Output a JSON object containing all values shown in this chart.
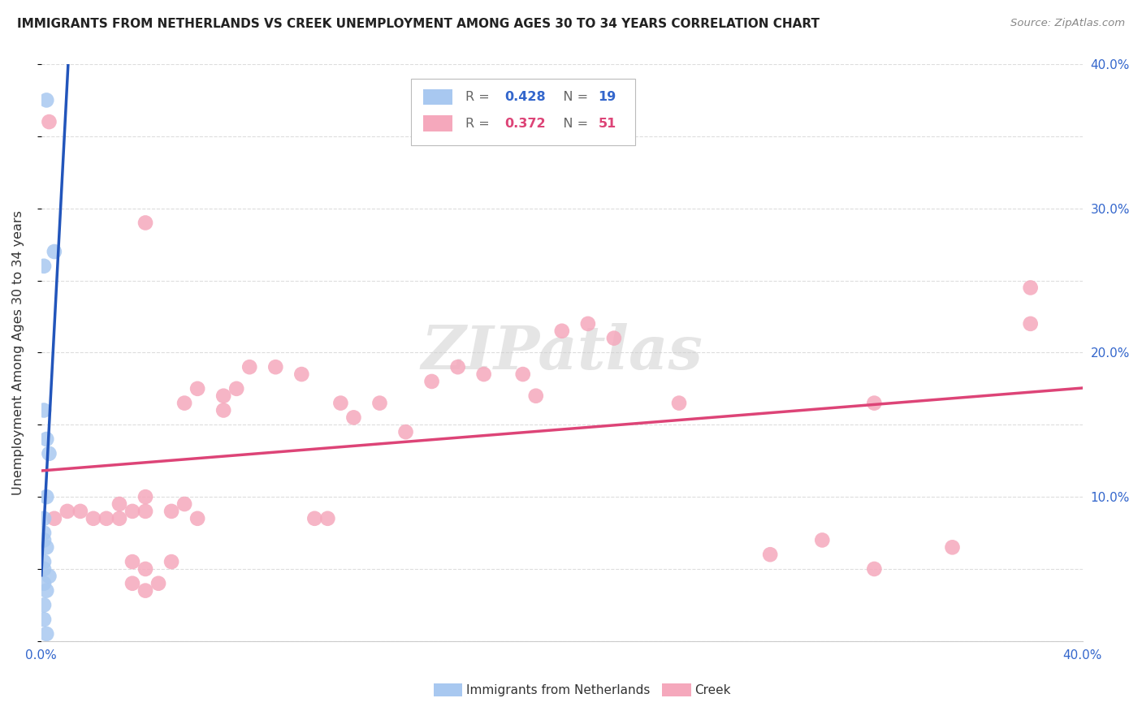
{
  "title": "IMMIGRANTS FROM NETHERLANDS VS CREEK UNEMPLOYMENT AMONG AGES 30 TO 34 YEARS CORRELATION CHART",
  "source": "Source: ZipAtlas.com",
  "ylabel": "Unemployment Among Ages 30 to 34 years",
  "xlim": [
    0.0,
    0.4
  ],
  "ylim": [
    0.0,
    0.4
  ],
  "watermark": "ZIPatlas",
  "legend_blue_R": "0.428",
  "legend_blue_N": "19",
  "legend_pink_R": "0.372",
  "legend_pink_N": "51",
  "legend_label_blue": "Immigrants from Netherlands",
  "legend_label_pink": "Creek",
  "blue_color": "#a8c8f0",
  "pink_color": "#f5a8bc",
  "trendline_blue_color": "#2255bb",
  "trendline_pink_color": "#dd4477",
  "blue_scatter_x": [
    0.002,
    0.005,
    0.001,
    0.001,
    0.002,
    0.003,
    0.002,
    0.001,
    0.001,
    0.001,
    0.002,
    0.001,
    0.001,
    0.003,
    0.001,
    0.002,
    0.001,
    0.001,
    0.002
  ],
  "blue_scatter_y": [
    0.375,
    0.27,
    0.26,
    0.16,
    0.14,
    0.13,
    0.1,
    0.085,
    0.075,
    0.07,
    0.065,
    0.055,
    0.05,
    0.045,
    0.04,
    0.035,
    0.025,
    0.015,
    0.005
  ],
  "pink_scatter_x": [
    0.003,
    0.005,
    0.01,
    0.015,
    0.02,
    0.025,
    0.03,
    0.035,
    0.04,
    0.05,
    0.055,
    0.06,
    0.07,
    0.075,
    0.08,
    0.09,
    0.1,
    0.105,
    0.11,
    0.115,
    0.12,
    0.13,
    0.14,
    0.15,
    0.16,
    0.17,
    0.185,
    0.19,
    0.2,
    0.21,
    0.22,
    0.245,
    0.28,
    0.3,
    0.32,
    0.35,
    0.38,
    0.04,
    0.055,
    0.06,
    0.07,
    0.03,
    0.04,
    0.05,
    0.035,
    0.04,
    0.045,
    0.035,
    0.04,
    0.38,
    0.32
  ],
  "pink_scatter_y": [
    0.36,
    0.085,
    0.09,
    0.09,
    0.085,
    0.085,
    0.095,
    0.09,
    0.1,
    0.09,
    0.095,
    0.085,
    0.17,
    0.175,
    0.19,
    0.19,
    0.185,
    0.085,
    0.085,
    0.165,
    0.155,
    0.165,
    0.145,
    0.18,
    0.19,
    0.185,
    0.185,
    0.17,
    0.215,
    0.22,
    0.21,
    0.165,
    0.06,
    0.07,
    0.05,
    0.065,
    0.22,
    0.29,
    0.165,
    0.175,
    0.16,
    0.085,
    0.09,
    0.055,
    0.055,
    0.05,
    0.04,
    0.04,
    0.035,
    0.245,
    0.165
  ],
  "grid_color": "#dddddd",
  "background_color": "#ffffff",
  "right_ytick_labels": [
    "",
    "",
    "10.0%",
    "",
    "20.0%",
    "",
    "30.0%",
    "",
    "40.0%"
  ],
  "xtick_labels": [
    "0.0%",
    "",
    "",
    "",
    "",
    "",
    "",
    "",
    "40.0%"
  ]
}
